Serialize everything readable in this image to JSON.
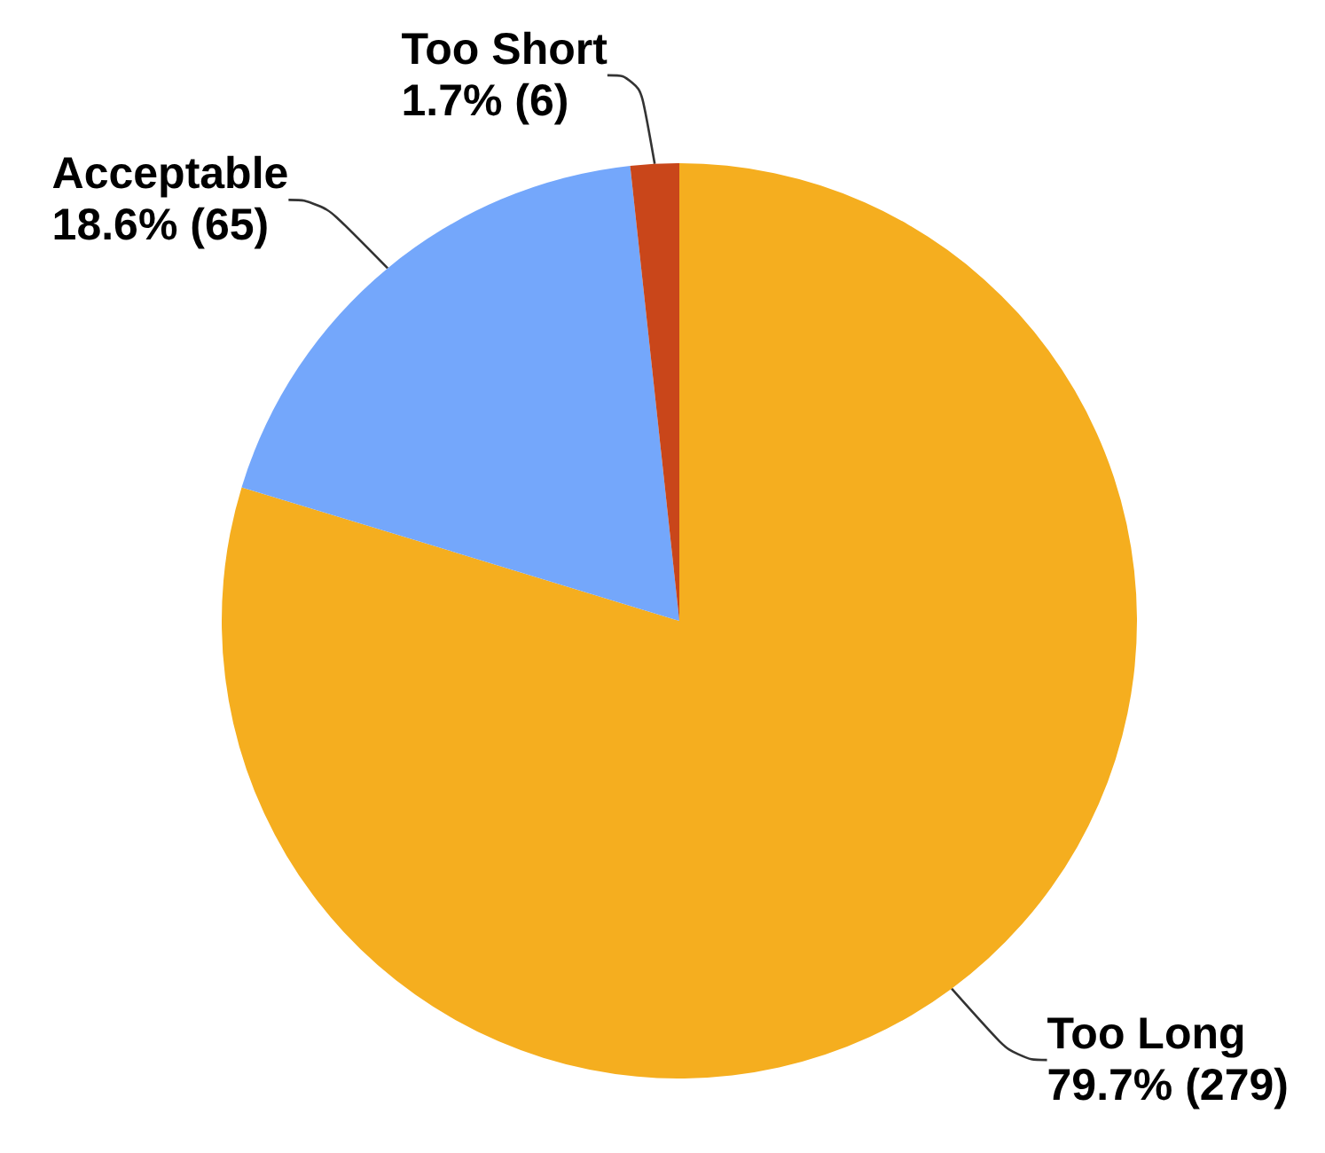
{
  "chart_data": {
    "type": "pie",
    "categories": [
      "Too Long",
      "Acceptable",
      "Too Short"
    ],
    "values": [
      279,
      65,
      6
    ],
    "colors": [
      "#f5ae1f",
      "#74a7fb",
      "#c9461a"
    ],
    "value_labels": [
      "79.7% (279)",
      "18.6% (65)",
      "1.7% (6)"
    ],
    "legend": false
  }
}
